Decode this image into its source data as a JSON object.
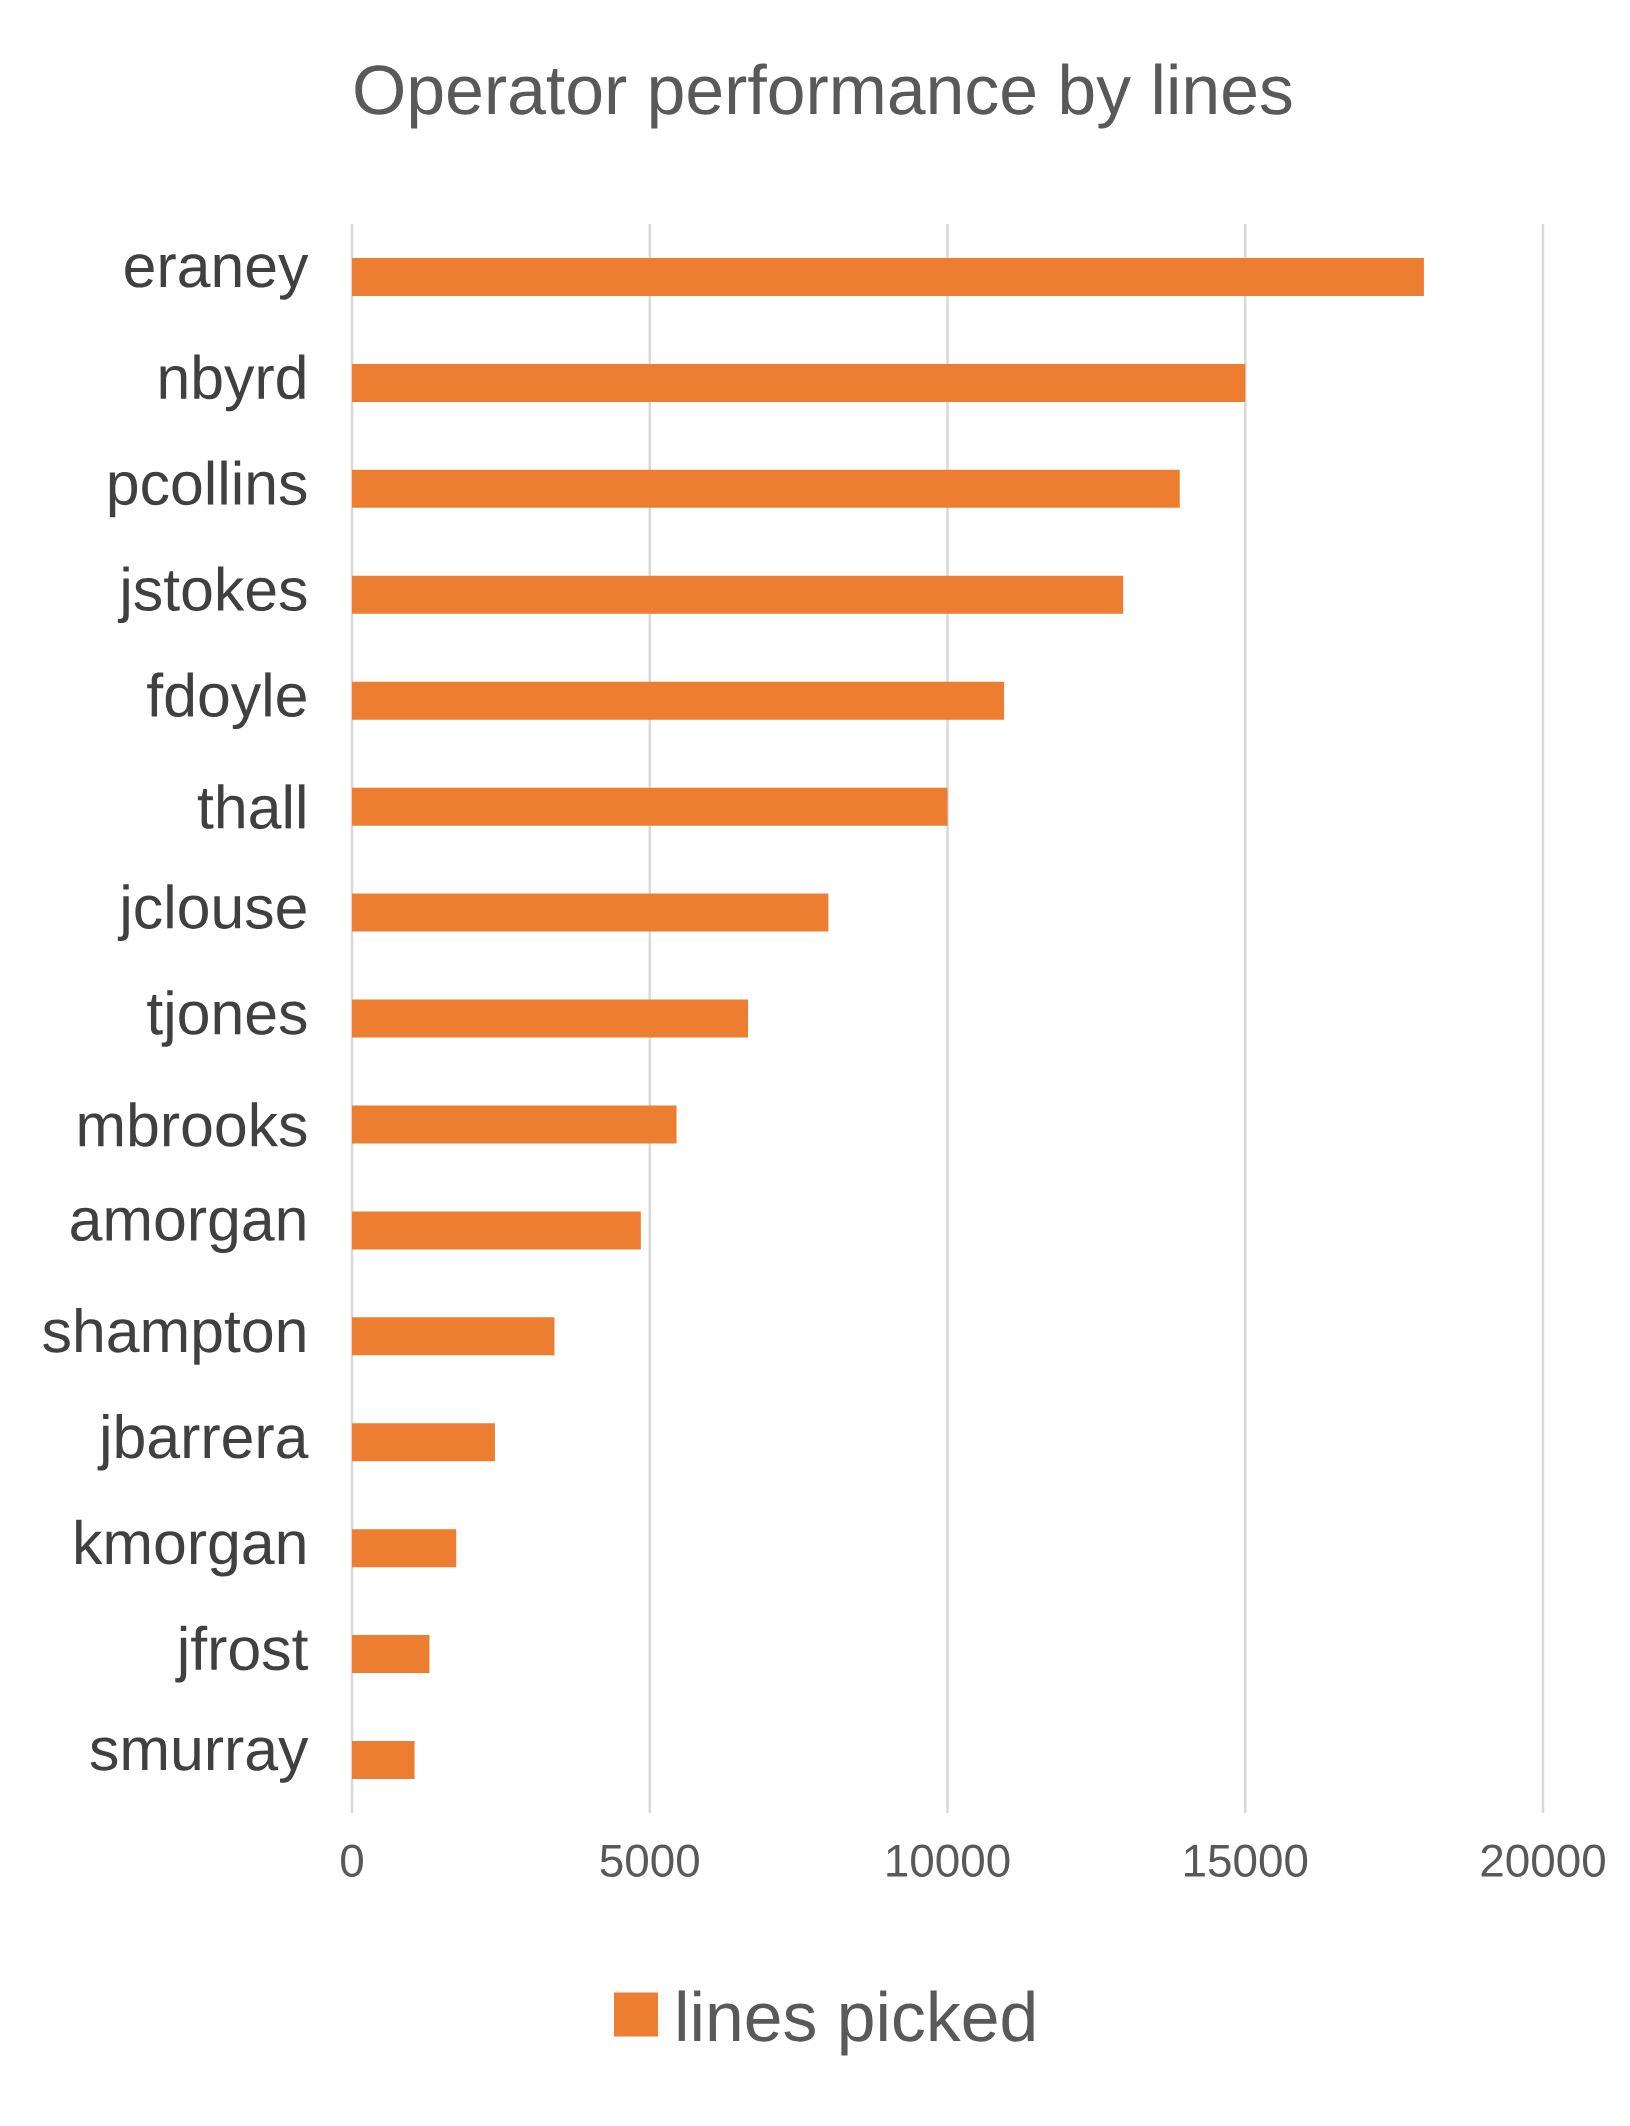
{
  "chart_data": {
    "type": "bar",
    "orientation": "horizontal",
    "title": "Operator performance by lines",
    "categories": [
      "eraney",
      "nbyrd",
      "pcollins",
      "jstokes",
      "fdoyle",
      "thall",
      "jclouse",
      "tjones",
      "mbrooks",
      "amorgan",
      "shampton",
      "jbarrera",
      "kmorgan",
      "jfrost",
      "smurray"
    ],
    "series": [
      {
        "name": "lines picked",
        "color": "#ed7d31",
        "values": [
          18000,
          15000,
          13900,
          12950,
          10950,
          10000,
          8000,
          6650,
          5450,
          4850,
          3400,
          2400,
          1750,
          1300,
          1050
        ]
      }
    ],
    "xlim": [
      0,
      20000
    ],
    "xticks": [
      0,
      5000,
      10000,
      15000,
      20000
    ],
    "grid": "x",
    "legend": "bottom"
  }
}
